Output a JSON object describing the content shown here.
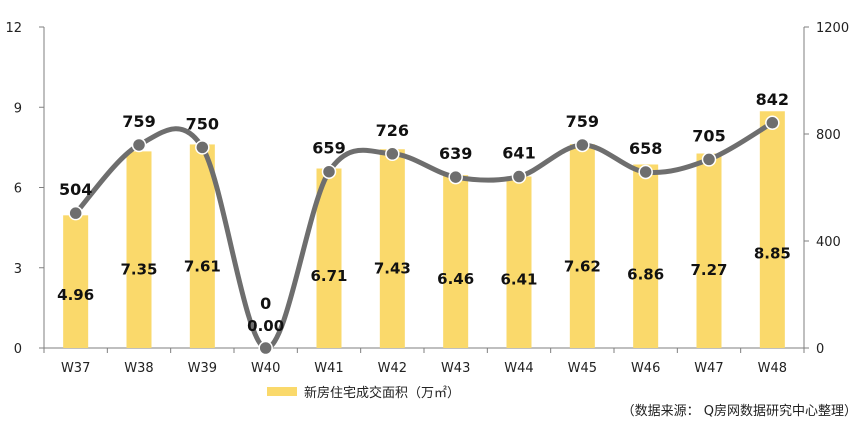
{
  "chart_data": {
    "type": "bar",
    "categories": [
      "W37",
      "W38",
      "W39",
      "W40",
      "W41",
      "W42",
      "W43",
      "W44",
      "W45",
      "W46",
      "W47",
      "W48"
    ],
    "series": [
      {
        "name": "新房住宅成交面积（万㎡）",
        "type": "bar",
        "axis": "left",
        "values": [
          4.96,
          7.35,
          7.61,
          0.0,
          6.71,
          7.43,
          6.46,
          6.41,
          7.62,
          6.86,
          7.27,
          8.85
        ],
        "labels": [
          "4.96",
          "7.35",
          "7.61",
          "0.00",
          "6.71",
          "7.43",
          "6.46",
          "6.41",
          "7.62",
          "6.86",
          "7.27",
          "8.85"
        ],
        "color": "#FAD96B"
      },
      {
        "type": "line",
        "axis": "right",
        "smooth": true,
        "values": [
          504,
          759,
          750,
          0,
          659,
          726,
          639,
          641,
          759,
          658,
          705,
          842
        ],
        "labels": [
          "504",
          "759",
          "750",
          "0",
          "659",
          "726",
          "639",
          "641",
          "759",
          "658",
          "705",
          "842"
        ],
        "color": "#6E6E6E"
      }
    ],
    "y_left": {
      "lim": [
        0,
        12
      ],
      "ticks": [
        "0",
        "3",
        "6",
        "9",
        "12"
      ],
      "tick_values": [
        0,
        3,
        6,
        9,
        12
      ]
    },
    "y_right": {
      "lim": [
        0,
        1200
      ],
      "ticks": [
        "0",
        "400",
        "800",
        "1200"
      ],
      "tick_values": [
        0,
        400,
        800,
        1200
      ]
    },
    "grid": false,
    "legend_position": "bottom"
  },
  "source_note": "（数据来源：  Q房网数据研究中心整理）"
}
